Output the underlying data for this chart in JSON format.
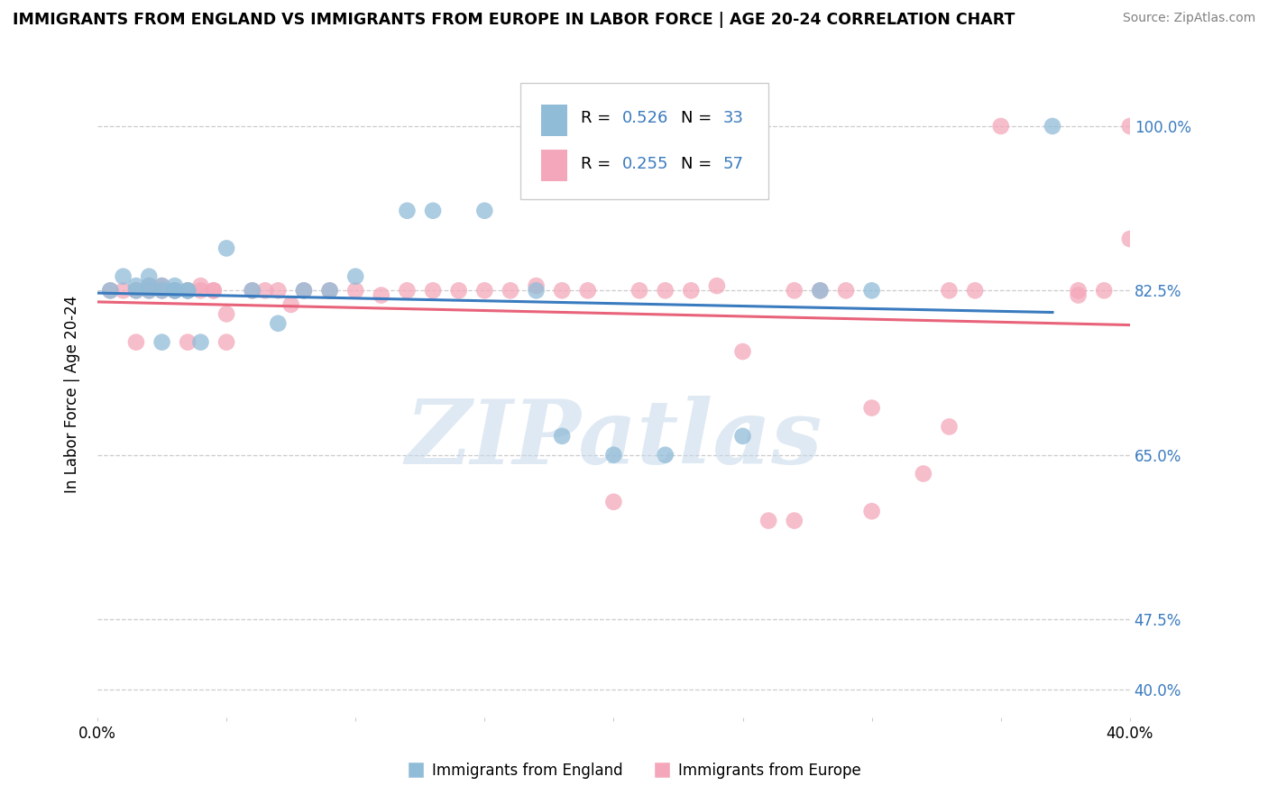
{
  "title": "IMMIGRANTS FROM ENGLAND VS IMMIGRANTS FROM EUROPE IN LABOR FORCE | AGE 20-24 CORRELATION CHART",
  "source": "Source: ZipAtlas.com",
  "ylabel": "In Labor Force | Age 20-24",
  "xlim": [
    0.0,
    0.4
  ],
  "ylim": [
    0.37,
    1.06
  ],
  "ytick_positions": [
    0.4,
    0.475,
    0.65,
    0.825,
    1.0
  ],
  "ytick_labels_right": [
    "40.0%",
    "47.5%",
    "65.0%",
    "82.5%",
    "100.0%"
  ],
  "xtick_positions": [
    0.0,
    0.05,
    0.1,
    0.15,
    0.2,
    0.25,
    0.3,
    0.35,
    0.4
  ],
  "xtick_labels": [
    "0.0%",
    "",
    "",
    "",
    "",
    "",
    "",
    "",
    "40.0%"
  ],
  "legend_label_blue": "Immigrants from England",
  "legend_label_pink": "Immigrants from Europe",
  "blue_color": "#91bcd8",
  "pink_color": "#f4a7ba",
  "blue_line_color": "#3a7bbf",
  "pink_line_color": "#e8637a",
  "watermark_text": "ZIPatlas",
  "watermark_color": "#c5d8ea",
  "R_blue": "0.526",
  "N_blue": "33",
  "R_pink": "0.255",
  "N_pink": "57",
  "stat_color": "#3a7bbf",
  "blue_x": [
    0.005,
    0.01,
    0.015,
    0.015,
    0.02,
    0.02,
    0.02,
    0.025,
    0.025,
    0.025,
    0.03,
    0.03,
    0.03,
    0.035,
    0.035,
    0.04,
    0.05,
    0.06,
    0.07,
    0.08,
    0.09,
    0.1,
    0.12,
    0.13,
    0.15,
    0.17,
    0.18,
    0.2,
    0.22,
    0.25,
    0.28,
    0.3,
    0.37
  ],
  "blue_y": [
    0.825,
    0.84,
    0.825,
    0.83,
    0.825,
    0.83,
    0.84,
    0.77,
    0.825,
    0.83,
    0.825,
    0.825,
    0.83,
    0.825,
    0.825,
    0.77,
    0.87,
    0.825,
    0.79,
    0.825,
    0.825,
    0.84,
    0.91,
    0.91,
    0.91,
    0.825,
    0.67,
    0.65,
    0.65,
    0.67,
    0.825,
    0.825,
    1.0
  ],
  "pink_x": [
    0.005,
    0.01,
    0.015,
    0.015,
    0.02,
    0.02,
    0.025,
    0.025,
    0.03,
    0.03,
    0.035,
    0.035,
    0.04,
    0.04,
    0.045,
    0.045,
    0.05,
    0.05,
    0.06,
    0.065,
    0.07,
    0.075,
    0.08,
    0.09,
    0.1,
    0.11,
    0.12,
    0.13,
    0.14,
    0.15,
    0.16,
    0.17,
    0.18,
    0.19,
    0.2,
    0.21,
    0.22,
    0.23,
    0.24,
    0.25,
    0.26,
    0.27,
    0.28,
    0.29,
    0.3,
    0.32,
    0.33,
    0.34,
    0.35,
    0.38,
    0.39,
    0.4,
    0.27,
    0.3,
    0.33,
    0.38,
    0.4
  ],
  "pink_y": [
    0.825,
    0.825,
    0.77,
    0.825,
    0.825,
    0.83,
    0.825,
    0.83,
    0.825,
    0.825,
    0.77,
    0.825,
    0.825,
    0.83,
    0.825,
    0.825,
    0.77,
    0.8,
    0.825,
    0.825,
    0.825,
    0.81,
    0.825,
    0.825,
    0.825,
    0.82,
    0.825,
    0.825,
    0.825,
    0.825,
    0.825,
    0.83,
    0.825,
    0.825,
    0.6,
    0.825,
    0.825,
    0.825,
    0.83,
    0.76,
    0.58,
    0.825,
    0.825,
    0.825,
    0.7,
    0.63,
    0.825,
    0.825,
    1.0,
    0.825,
    0.825,
    0.88,
    0.58,
    0.59,
    0.68,
    0.82,
    1.0
  ]
}
